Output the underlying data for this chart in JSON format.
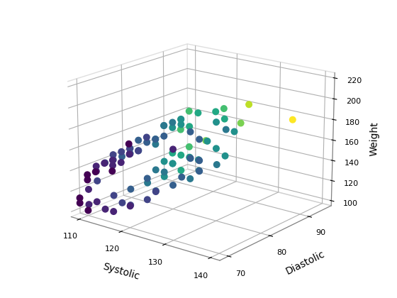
{
  "xlabel": "Systolic",
  "ylabel": "Diastolic",
  "zlabel": "Weight",
  "colormap": "viridis",
  "seed": 42,
  "n_points": 100,
  "background_color": "#ffffff",
  "marker_size": 38,
  "elev": 18,
  "azim": -52,
  "xlim": [
    108,
    142
  ],
  "ylim": [
    68,
    96
  ],
  "zlim": [
    95,
    225
  ],
  "xticks": [
    110,
    120,
    130,
    140
  ],
  "yticks": [
    70,
    80,
    90
  ],
  "zticks": [
    100,
    120,
    140,
    160,
    180,
    200,
    220
  ],
  "pane_color": [
    0.94,
    0.94,
    0.94,
    0.0
  ],
  "grid_color": "#d0d0d0"
}
